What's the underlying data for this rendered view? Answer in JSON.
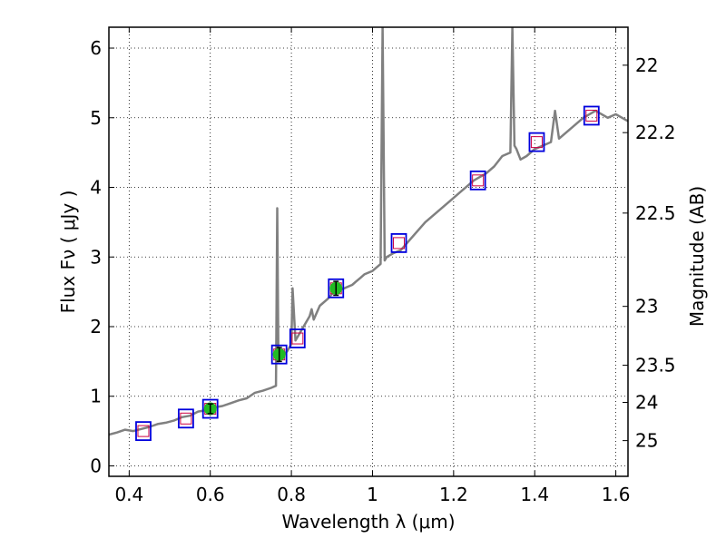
{
  "chart_data": {
    "type": "line",
    "title": "",
    "xlabel": "Wavelength  λ (μm)",
    "ylabel": "Flux  Fν  ( μJy )",
    "y2label": "Magnitude (AB)",
    "xlim": [
      0.35,
      1.63
    ],
    "ylim": [
      -0.15,
      6.3
    ],
    "xticks": [
      0.4,
      0.6,
      0.8,
      1.0,
      1.2,
      1.4,
      1.6
    ],
    "xtick_labels": [
      "0.4",
      "0.6",
      "0.8",
      "1",
      "1.2",
      "1.4",
      "1.6"
    ],
    "yticks": [
      0,
      1,
      2,
      3,
      4,
      5,
      6
    ],
    "ytick_labels": [
      "0",
      "1",
      "2",
      "3",
      "4",
      "5",
      "6"
    ],
    "y2ticks": [
      22,
      22.2,
      22.5,
      23,
      23.5,
      24,
      25
    ],
    "y2tick_labels": [
      "22",
      "22.2",
      "22.5",
      "23",
      "23.5",
      "24",
      "25"
    ],
    "grid": true,
    "colors": {
      "spectrum": "#808080",
      "model_box": "#0000dd",
      "model_box_inner": "#cc0044",
      "observed": "#22bb22"
    },
    "series": [
      {
        "type": "line",
        "x": [
          0.35,
          0.37,
          0.39,
          0.41,
          0.43,
          0.45,
          0.47,
          0.49,
          0.51,
          0.53,
          0.55,
          0.57,
          0.59,
          0.61,
          0.63,
          0.65,
          0.67,
          0.69,
          0.71,
          0.73,
          0.75,
          0.762,
          0.765,
          0.768,
          0.775,
          0.79,
          0.8,
          0.803,
          0.81,
          0.83,
          0.845,
          0.85,
          0.855,
          0.87,
          0.89,
          0.905,
          0.93,
          0.95,
          0.96,
          0.97,
          0.98,
          1.0,
          1.02,
          1.025,
          1.03,
          1.035,
          1.05,
          1.07,
          1.1,
          1.13,
          1.16,
          1.19,
          1.22,
          1.25,
          1.28,
          1.3,
          1.32,
          1.34,
          1.345,
          1.35,
          1.355,
          1.365,
          1.38,
          1.4,
          1.42,
          1.44,
          1.45,
          1.46,
          1.49,
          1.52,
          1.55,
          1.58,
          1.6,
          1.63
        ],
        "y": [
          0.45,
          0.48,
          0.52,
          0.5,
          0.53,
          0.56,
          0.6,
          0.62,
          0.65,
          0.7,
          0.72,
          0.78,
          0.8,
          0.84,
          0.86,
          0.9,
          0.94,
          0.97,
          1.05,
          1.08,
          1.12,
          1.15,
          3.7,
          1.5,
          1.55,
          1.65,
          1.75,
          2.55,
          1.8,
          2.0,
          2.15,
          2.25,
          2.1,
          2.3,
          2.4,
          2.5,
          2.55,
          2.6,
          2.65,
          2.7,
          2.75,
          2.8,
          2.9,
          6.3,
          2.95,
          3.0,
          3.05,
          3.1,
          3.3,
          3.5,
          3.65,
          3.8,
          3.95,
          4.1,
          4.2,
          4.3,
          4.45,
          4.5,
          6.3,
          4.6,
          4.55,
          4.4,
          4.45,
          4.55,
          4.6,
          4.65,
          5.1,
          4.7,
          4.85,
          5.0,
          5.1,
          5.0,
          5.05,
          4.95
        ]
      },
      {
        "type": "model_box",
        "x": [
          0.435,
          0.54,
          0.6,
          0.77,
          0.815,
          0.91,
          1.065,
          1.26,
          1.405,
          1.54
        ],
        "y": [
          0.5,
          0.68,
          0.82,
          1.6,
          1.83,
          2.55,
          3.2,
          4.1,
          4.65,
          5.03
        ]
      },
      {
        "type": "observed",
        "x": [
          0.6,
          0.77,
          0.91
        ],
        "y": [
          0.82,
          1.6,
          2.55
        ],
        "yerr": [
          0.07,
          0.1,
          0.1
        ]
      }
    ]
  }
}
